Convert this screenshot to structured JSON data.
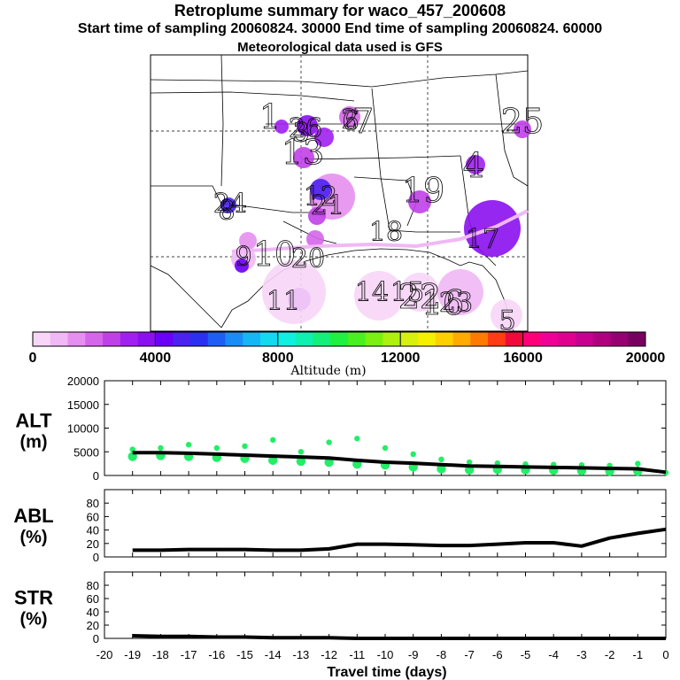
{
  "title": {
    "line1": "Retroplume summary for waco_457_200608",
    "line2": "Start time of sampling 20060824. 30000     End time of sampling 20060824. 60000",
    "line3": "Meteorological data used is GFS"
  },
  "colors": {
    "track": "#000000",
    "points": "#22ee66",
    "colorbar": [
      "#f7d6f7",
      "#f0b8f5",
      "#e58ff0",
      "#d466ea",
      "#c040e8",
      "#a020f0",
      "#8a10f0",
      "#6a00f5",
      "#4b22f0",
      "#2c30f0",
      "#1f5ef5",
      "#1a8cf5",
      "#14b6f5",
      "#12d8f0",
      "#10f0e0",
      "#10f0b0",
      "#14f07a",
      "#20f040",
      "#48f020",
      "#7cf010",
      "#aef010",
      "#d8f010",
      "#f4f000",
      "#ffd000",
      "#ffaa00",
      "#ff7a00",
      "#ff3c14",
      "#f00a3c",
      "#ff0078",
      "#f00096",
      "#e00090",
      "#c80090",
      "#b00080",
      "#960070",
      "#780060"
    ]
  },
  "colorbar": {
    "ticks": [
      "0",
      "4000",
      "8000",
      "12000",
      "16000",
      "20000"
    ],
    "label": "Altitude (m)"
  },
  "map": {
    "day_labels": [
      "1",
      "2",
      "3",
      "4",
      "5",
      "6",
      "7",
      "8",
      "9",
      "10",
      "11",
      "12",
      "13",
      "14",
      "15",
      "16",
      "17",
      "18",
      "19",
      "20",
      "21",
      "22",
      "23",
      "24",
      "25",
      "26"
    ]
  },
  "chart_data": [
    {
      "type": "line",
      "panel": "ALT",
      "ylabel_line1": "ALT",
      "ylabel_line2": "(m)",
      "ylim": [
        0,
        20000
      ],
      "yticks": [
        "20000",
        "15000",
        "10000",
        "5000",
        "0"
      ],
      "x": [
        -19,
        -18,
        -17,
        -16,
        -15,
        -14,
        -13,
        -12,
        -11,
        -10,
        -9,
        -8,
        -7,
        -6,
        -5,
        -4,
        -3,
        -2,
        -1,
        0
      ],
      "values": [
        4800,
        4800,
        4700,
        4500,
        4300,
        4100,
        3900,
        3700,
        3200,
        2800,
        2600,
        2300,
        2000,
        1900,
        1800,
        1700,
        1600,
        1500,
        1400,
        700
      ],
      "points": [
        [
          -19,
          5500
        ],
        [
          -19,
          4000
        ],
        [
          -18,
          5800
        ],
        [
          -18,
          4200
        ],
        [
          -17,
          6500
        ],
        [
          -17,
          4000
        ],
        [
          -16,
          5800
        ],
        [
          -16,
          3800
        ],
        [
          -15,
          6200
        ],
        [
          -15,
          3600
        ],
        [
          -14,
          7500
        ],
        [
          -14,
          3200
        ],
        [
          -13,
          5000
        ],
        [
          -13,
          3000
        ],
        [
          -12,
          7000
        ],
        [
          -12,
          2800
        ],
        [
          -11,
          7800
        ],
        [
          -11,
          2400
        ],
        [
          -10,
          5800
        ],
        [
          -10,
          2200
        ],
        [
          -9,
          4500
        ],
        [
          -9,
          1800
        ],
        [
          -8,
          3400
        ],
        [
          -8,
          1400
        ],
        [
          -7,
          2800
        ],
        [
          -7,
          1200
        ],
        [
          -6,
          2600
        ],
        [
          -6,
          1300
        ],
        [
          -5,
          2400
        ],
        [
          -5,
          1200
        ],
        [
          -4,
          2300
        ],
        [
          -4,
          1100
        ],
        [
          -3,
          2200
        ],
        [
          -3,
          1000
        ],
        [
          -2,
          2100
        ],
        [
          -2,
          900
        ],
        [
          -1,
          2500
        ],
        [
          -1,
          900
        ],
        [
          0,
          600
        ]
      ]
    },
    {
      "type": "line",
      "panel": "ABL",
      "ylabel_line1": "ABL",
      "ylabel_line2": "(%)",
      "ylim": [
        0,
        100
      ],
      "yticks": [
        "80",
        "60",
        "40",
        "20",
        "0"
      ],
      "x": [
        -19,
        -18,
        -17,
        -16,
        -15,
        -14,
        -13,
        -12,
        -11,
        -10,
        -9,
        -8,
        -7,
        -6,
        -5,
        -4,
        -3,
        -2,
        -1,
        0
      ],
      "values": [
        10,
        10,
        11,
        11,
        11,
        10,
        10,
        12,
        19,
        19,
        18,
        17,
        17,
        19,
        21,
        21,
        16,
        28,
        35,
        41
      ]
    },
    {
      "type": "line",
      "panel": "STR",
      "ylabel_line1": "STR",
      "ylabel_line2": "(%)",
      "ylim": [
        0,
        100
      ],
      "yticks": [
        "80",
        "60",
        "40",
        "20",
        "0"
      ],
      "x": [
        -19,
        -18,
        -17,
        -16,
        -15,
        -14,
        -13,
        -12,
        -11,
        -10,
        -9,
        -8,
        -7,
        -6,
        -5,
        -4,
        -3,
        -2,
        -1,
        0
      ],
      "values": [
        4,
        3,
        3,
        2,
        2,
        1,
        1,
        1,
        0,
        0,
        0,
        0,
        0,
        0,
        0,
        0,
        0,
        0,
        0,
        0
      ]
    },
    {
      "type": "axis",
      "panel": "x-axis",
      "xlabel": "Travel time (days)",
      "xlim": [
        -20,
        0
      ],
      "xticks": [
        "-20",
        "-19",
        "-18",
        "-17",
        "-16",
        "-15",
        "-14",
        "-13",
        "-12",
        "-11",
        "-10",
        "-9",
        "-8",
        "-7",
        "-6",
        "-5",
        "-4",
        "-3",
        "-2",
        "-1",
        "0"
      ]
    }
  ]
}
